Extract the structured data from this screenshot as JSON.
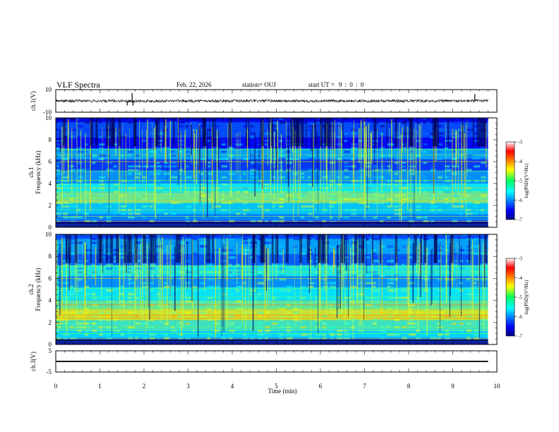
{
  "header": {
    "title": "VLF Spectra",
    "date": "Feb. 22, 2026",
    "station": "station= OUJ",
    "start_label": "start  UT =",
    "start_value": "9 : 0 : 0"
  },
  "colors": {
    "trace": "#000000",
    "spectrogram_background": "#1e3cd2"
  },
  "chart_data": [
    {
      "type": "line",
      "name": "waveform-ch1",
      "ylabel": "ch.1(V)",
      "ylim": [
        -10,
        10
      ],
      "yticks": [
        "10",
        "-10"
      ],
      "xlim": [
        0,
        10
      ],
      "approx_level": 0,
      "approx_amplitude": 1.2,
      "spikes": [
        {
          "x": 1.62,
          "y": -4
        },
        {
          "x": 1.75,
          "y": -4
        },
        {
          "x": 1.73,
          "y": 7
        },
        {
          "x": 9.5,
          "y": 6
        }
      ]
    },
    {
      "type": "heatmap",
      "name": "spectrogram-ch1",
      "ylabel_line1": "ch.1",
      "ylabel_line2": "Frequency (kHz)",
      "ylim": [
        0,
        10
      ],
      "yticks": [
        "0",
        "2",
        "4",
        "6",
        "8",
        "10"
      ],
      "xlim": [
        0,
        10
      ],
      "data_extent_min": 9.8,
      "colorbar": {
        "label": "log(PSD)(V²/Hz)",
        "range": [
          -7,
          -3
        ],
        "ticks": [
          "-3",
          "-4",
          "-5",
          "-6",
          "-7"
        ]
      }
    },
    {
      "type": "heatmap",
      "name": "spectrogram-ch2",
      "ylabel_line1": "ch.2",
      "ylabel_line2": "Frequency (kHz)",
      "ylim": [
        0,
        10
      ],
      "yticks": [
        "0",
        "2",
        "4",
        "6",
        "8",
        "10"
      ],
      "xlim": [
        0,
        10
      ],
      "data_extent_min": 9.8,
      "colorbar": {
        "label": "log(PSD)(V²/Hz)",
        "range": [
          -7,
          -3
        ],
        "ticks": [
          "-3",
          "-4",
          "-5",
          "-6",
          "-7"
        ]
      }
    },
    {
      "type": "line",
      "name": "waveform-ch3",
      "ylabel": "ch.3(V)",
      "ylim": [
        -5,
        5
      ],
      "yticks": [
        "5",
        "-5"
      ],
      "xlim": [
        0,
        10
      ],
      "approx_level": 0,
      "approx_amplitude": 0.15
    }
  ],
  "x_axis": {
    "label": "Time (min)",
    "ticks": [
      "0",
      "1",
      "2",
      "3",
      "4",
      "5",
      "6",
      "7",
      "8",
      "9",
      "10"
    ]
  }
}
